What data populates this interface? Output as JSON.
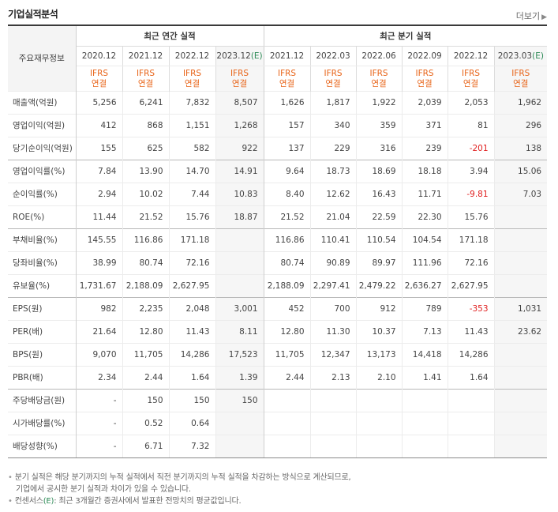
{
  "header": {
    "title": "기업실적분석",
    "more_label": "더보기"
  },
  "table": {
    "label_header": "주요재무정보",
    "annual_group": "최근 연간 실적",
    "quarter_group": "최근 분기 실적",
    "annual_periods": [
      {
        "label": "2020.12",
        "est": ""
      },
      {
        "label": "2021.12",
        "est": ""
      },
      {
        "label": "2022.12",
        "est": ""
      },
      {
        "label": "2023.12",
        "est": "(E)"
      }
    ],
    "quarter_periods": [
      {
        "label": "2021.12",
        "est": ""
      },
      {
        "label": "2022.03",
        "est": ""
      },
      {
        "label": "2022.06",
        "est": ""
      },
      {
        "label": "2022.09",
        "est": ""
      },
      {
        "label": "2022.12",
        "est": ""
      },
      {
        "label": "2023.03",
        "est": "(E)"
      }
    ],
    "ifrs_line1": "IFRS",
    "ifrs_line2": "연결",
    "rows": [
      {
        "label": "매출액(억원)",
        "sect": false,
        "values": [
          "5,256",
          "6,241",
          "7,832",
          "8,507",
          "1,626",
          "1,817",
          "1,922",
          "2,039",
          "2,053",
          "1,962"
        ]
      },
      {
        "label": "영업이익(억원)",
        "sect": false,
        "values": [
          "412",
          "868",
          "1,151",
          "1,268",
          "157",
          "340",
          "359",
          "371",
          "81",
          "296"
        ]
      },
      {
        "label": "당기순이익(억원)",
        "sect": false,
        "values": [
          "155",
          "625",
          "582",
          "922",
          "137",
          "229",
          "316",
          "239",
          "-201",
          "138"
        ]
      },
      {
        "label": "영업이익률(%)",
        "sect": true,
        "values": [
          "7.84",
          "13.90",
          "14.70",
          "14.91",
          "9.64",
          "18.73",
          "18.69",
          "18.18",
          "3.94",
          "15.06"
        ]
      },
      {
        "label": "순이익률(%)",
        "sect": false,
        "values": [
          "2.94",
          "10.02",
          "7.44",
          "10.83",
          "8.40",
          "12.62",
          "16.43",
          "11.71",
          "-9.81",
          "7.03"
        ]
      },
      {
        "label": "ROE(%)",
        "sect": false,
        "values": [
          "11.44",
          "21.52",
          "15.76",
          "18.87",
          "21.52",
          "21.04",
          "22.59",
          "22.30",
          "15.76",
          ""
        ]
      },
      {
        "label": "부채비율(%)",
        "sect": true,
        "values": [
          "145.55",
          "116.86",
          "171.18",
          "",
          "116.86",
          "110.41",
          "110.54",
          "104.54",
          "171.18",
          ""
        ]
      },
      {
        "label": "당좌비율(%)",
        "sect": false,
        "values": [
          "38.99",
          "80.74",
          "72.16",
          "",
          "80.74",
          "90.89",
          "89.97",
          "111.96",
          "72.16",
          ""
        ]
      },
      {
        "label": "유보율(%)",
        "sect": false,
        "values": [
          "1,731.67",
          "2,188.09",
          "2,627.95",
          "",
          "2,188.09",
          "2,297.41",
          "2,479.22",
          "2,636.27",
          "2,627.95",
          ""
        ]
      },
      {
        "label": "EPS(원)",
        "sect": true,
        "values": [
          "982",
          "2,235",
          "2,048",
          "3,001",
          "452",
          "700",
          "912",
          "789",
          "-353",
          "1,031"
        ]
      },
      {
        "label": "PER(배)",
        "sect": false,
        "values": [
          "21.64",
          "12.80",
          "11.43",
          "8.11",
          "12.80",
          "11.30",
          "10.37",
          "7.13",
          "11.43",
          "23.62"
        ]
      },
      {
        "label": "BPS(원)",
        "sect": false,
        "values": [
          "9,070",
          "11,705",
          "14,286",
          "17,523",
          "11,705",
          "12,347",
          "13,173",
          "14,418",
          "14,286",
          ""
        ]
      },
      {
        "label": "PBR(배)",
        "sect": false,
        "values": [
          "2.34",
          "2.44",
          "1.64",
          "1.39",
          "2.44",
          "2.13",
          "2.10",
          "1.41",
          "1.64",
          ""
        ]
      },
      {
        "label": "주당배당금(원)",
        "sect": true,
        "values": [
          "-",
          "150",
          "150",
          "150",
          "",
          "",
          "",
          "",
          "",
          ""
        ]
      },
      {
        "label": "시가배당률(%)",
        "sect": false,
        "values": [
          "-",
          "0.52",
          "0.64",
          "",
          "",
          "",
          "",
          "",
          "",
          ""
        ]
      },
      {
        "label": "배당성향(%)",
        "sect": false,
        "values": [
          "-",
          "6.71",
          "7.32",
          "",
          "",
          "",
          "",
          "",
          "",
          ""
        ]
      }
    ]
  },
  "notes": {
    "line1": "분기 실적은 해당 분기까지의 누적 실적에서 직전 분기까지의 누적 실적을 차감하는 방식으로 계산되므로,",
    "line2": "기업에서 공시한 분기 실적과 차이가 있을 수 있습니다.",
    "line3_prefix": "컨센서스",
    "line3_e": "(E)",
    "line3_rest": ": 최근 3개월간 증권사에서 발표한 전망치의 평균값입니다."
  },
  "colors": {
    "ifrs": "#e8651a",
    "estimate": "#2e8b57",
    "negative": "#e02020",
    "estimate_bg": "#f6f6f6"
  }
}
